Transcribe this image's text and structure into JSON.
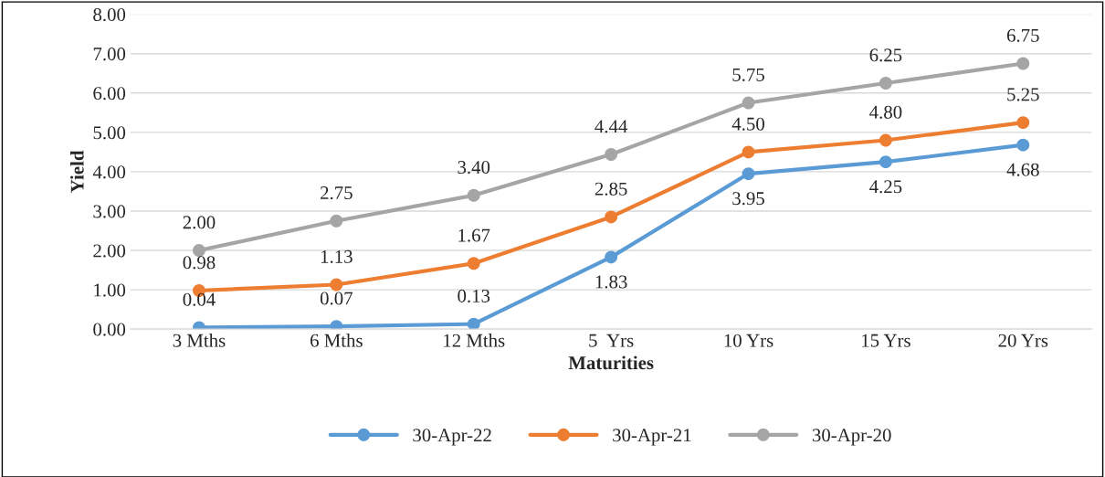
{
  "chart_data": {
    "type": "line",
    "xlabel": "Maturities",
    "ylabel": "Yield",
    "categories": [
      "3 Mths",
      "6 Mths",
      "12 Mths",
      "5  Yrs",
      "10 Yrs",
      "15 Yrs",
      "20 Yrs"
    ],
    "series": [
      {
        "name": "30-Apr-22",
        "color": "#5b9bd5",
        "values": [
          0.04,
          0.07,
          0.13,
          1.83,
          3.95,
          4.25,
          4.68
        ],
        "value_labels": [
          "0.04",
          "0.07",
          "0.13",
          "1.83",
          "3.95",
          "4.25",
          "4.68"
        ]
      },
      {
        "name": "30-Apr-21",
        "color": "#ed7d31",
        "values": [
          0.98,
          1.13,
          1.67,
          2.85,
          4.5,
          4.8,
          5.25
        ],
        "value_labels": [
          "0.98",
          "1.13",
          "1.67",
          "2.85",
          "4.50",
          "4.80",
          "5.25"
        ]
      },
      {
        "name": "30-Apr-20",
        "color": "#a5a5a5",
        "values": [
          2.0,
          2.75,
          3.4,
          4.44,
          5.75,
          6.25,
          6.75
        ],
        "value_labels": [
          "2.00",
          "2.75",
          "3.40",
          "4.44",
          "5.75",
          "6.25",
          "6.75"
        ]
      }
    ],
    "ylim": [
      0,
      8
    ],
    "yticks": [
      {
        "value": 0,
        "label": "0.00"
      },
      {
        "value": 1,
        "label": "1.00"
      },
      {
        "value": 2,
        "label": "2.00"
      },
      {
        "value": 3,
        "label": "3.00"
      },
      {
        "value": 4,
        "label": "4.00"
      },
      {
        "value": 5,
        "label": "5.00"
      },
      {
        "value": 6,
        "label": "6.00"
      },
      {
        "value": 7,
        "label": "7.00"
      },
      {
        "value": 8,
        "label": "8.00"
      }
    ],
    "grid": "y",
    "legend": "bottom",
    "marker": "circle",
    "line_style": "solid"
  }
}
